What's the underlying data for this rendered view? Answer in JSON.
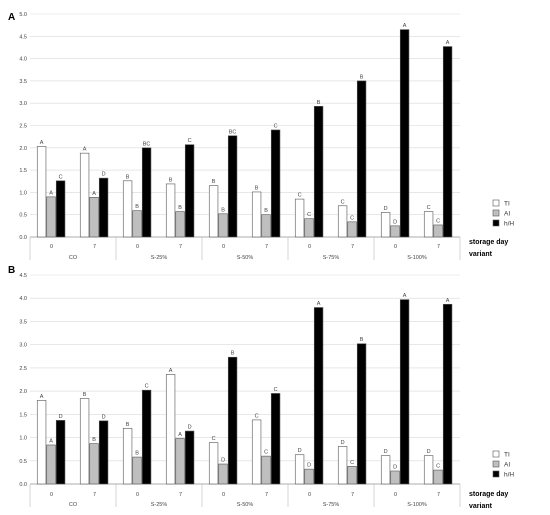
{
  "chart_data": [
    {
      "type": "bar",
      "panel": "A",
      "ylim": [
        0,
        5.0
      ],
      "yticks": [
        "0.0",
        "0.5",
        "1.0",
        "1.5",
        "2.0",
        "2.5",
        "3.0",
        "3.5",
        "4.0",
        "4.5",
        "5.0"
      ],
      "grid": true,
      "x_row_label": "storage day",
      "x_group_label": "variant",
      "storage_days": [
        "0",
        "7",
        "0",
        "7",
        "0",
        "7",
        "0",
        "7",
        "0",
        "7"
      ],
      "variants": [
        "CO",
        "S-25%",
        "S-50%",
        "S-75%",
        "S-100%"
      ],
      "series": [
        {
          "name": "TI",
          "color": "#ffffff",
          "values": [
            2.03,
            1.88,
            1.26,
            1.19,
            1.15,
            1.01,
            0.85,
            0.7,
            0.55,
            0.57
          ],
          "labels": [
            "A",
            "A",
            "B",
            "B",
            "B",
            "B",
            "C",
            "C",
            "D",
            "C"
          ]
        },
        {
          "name": "AI",
          "color": "#bfbfbf",
          "values": [
            0.9,
            0.89,
            0.59,
            0.57,
            0.52,
            0.5,
            0.41,
            0.34,
            0.25,
            0.27
          ],
          "labels": [
            "A",
            "A",
            "B",
            "B",
            "B",
            "B",
            "C",
            "C",
            "D",
            "C"
          ]
        },
        {
          "name": "h/H",
          "color": "#000000",
          "values": [
            1.26,
            1.32,
            2.0,
            2.07,
            2.27,
            2.4,
            2.93,
            3.5,
            4.65,
            4.27
          ],
          "labels": [
            "C",
            "D",
            "BC",
            "C",
            "BC",
            "C",
            "B",
            "B",
            "A",
            "A"
          ]
        }
      ],
      "legend_position": "right"
    },
    {
      "type": "bar",
      "panel": "B",
      "ylim": [
        0,
        4.5
      ],
      "yticks": [
        "0.0",
        "0.5",
        "1.0",
        "1.5",
        "2.0",
        "2.5",
        "3.0",
        "3.5",
        "4.0",
        "4.5"
      ],
      "grid": true,
      "x_row_label": "storage day",
      "x_group_label": "variant",
      "storage_days": [
        "0",
        "7",
        "0",
        "7",
        "0",
        "7",
        "0",
        "7",
        "0",
        "7"
      ],
      "variants": [
        "CO",
        "S-25%",
        "S-50%",
        "S-75%",
        "S-100%"
      ],
      "series": [
        {
          "name": "TI",
          "color": "#ffffff",
          "values": [
            1.8,
            1.84,
            1.2,
            2.36,
            0.89,
            1.38,
            0.63,
            0.81,
            0.61,
            0.61
          ],
          "labels": [
            "A",
            "B",
            "B",
            "A",
            "C",
            "C",
            "D",
            "D",
            "D",
            "D"
          ]
        },
        {
          "name": "AI",
          "color": "#bfbfbf",
          "values": [
            0.84,
            0.87,
            0.58,
            0.98,
            0.43,
            0.6,
            0.32,
            0.38,
            0.28,
            0.3
          ],
          "labels": [
            "A",
            "B",
            "B",
            "A",
            "D",
            "C",
            "D",
            "C",
            "D",
            "C"
          ]
        },
        {
          "name": "h/H",
          "color": "#000000",
          "values": [
            1.37,
            1.36,
            2.02,
            1.14,
            2.73,
            1.95,
            3.8,
            3.02,
            3.97,
            3.87
          ],
          "labels": [
            "D",
            "D",
            "C",
            "D",
            "B",
            "C",
            "A",
            "B",
            "A",
            "A"
          ]
        }
      ],
      "legend_position": "right"
    }
  ]
}
